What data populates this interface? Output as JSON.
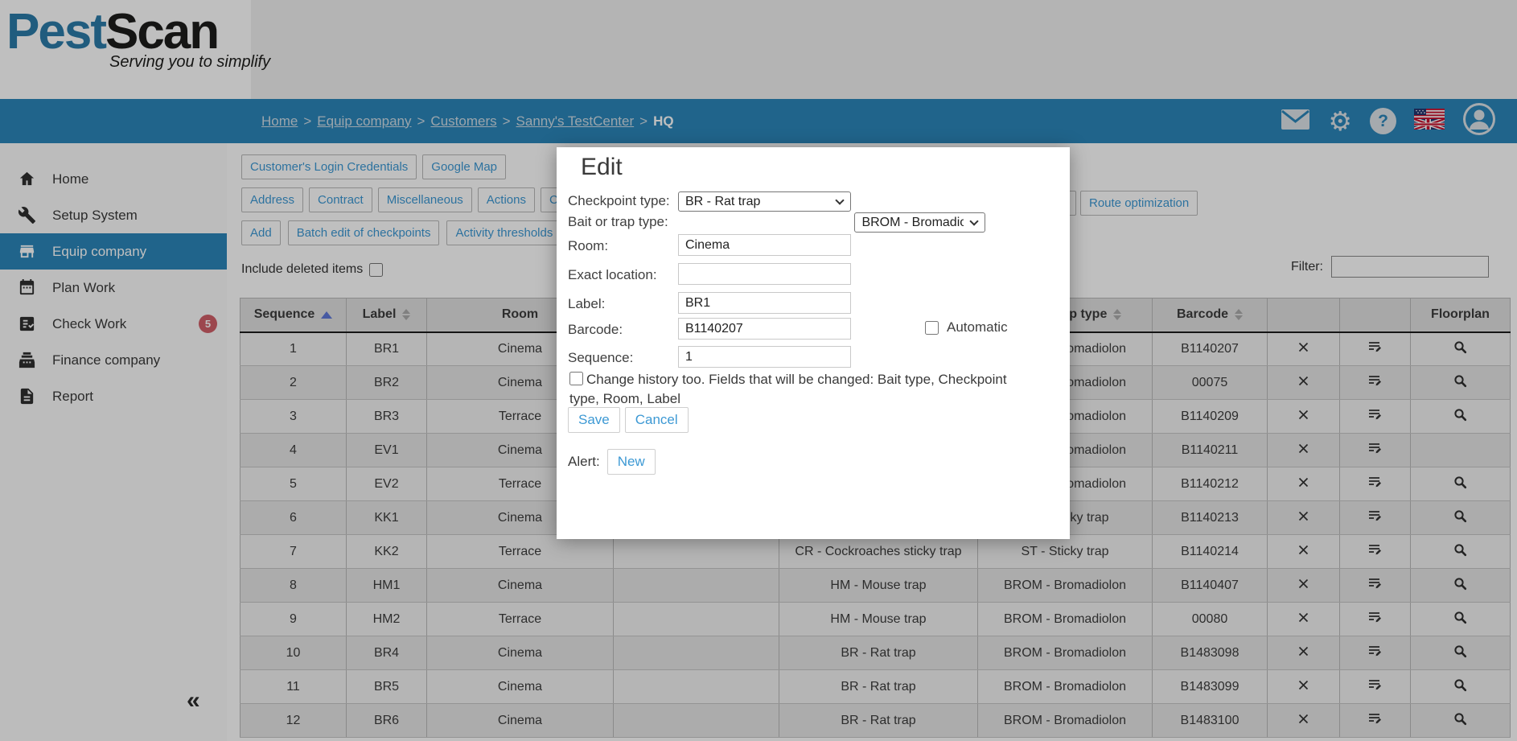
{
  "brand": {
    "name_primary": "Pest",
    "name_secondary": "Scan",
    "tagline": "Serving you to simplify"
  },
  "breadcrumb": {
    "items": [
      "Home",
      "Equip company",
      "Customers",
      "Sanny's TestCenter"
    ],
    "current": "HQ",
    "separator": ">"
  },
  "header_icons": [
    "mail-icon",
    "gear-icon",
    "help-icon",
    "language-flag-icon",
    "account-icon"
  ],
  "sidebar": {
    "items": [
      {
        "label": "Home",
        "icon": "home-icon"
      },
      {
        "label": "Setup System",
        "icon": "wrench-icon"
      },
      {
        "label": "Equip company",
        "icon": "store-icon",
        "active": true
      },
      {
        "label": "Plan Work",
        "icon": "calendar-icon"
      },
      {
        "label": "Check Work",
        "icon": "checklist-icon",
        "badge": "5"
      },
      {
        "label": "Finance company",
        "icon": "cash-register-icon"
      },
      {
        "label": "Report",
        "icon": "report-icon"
      }
    ],
    "collapse_glyph": "«"
  },
  "toolbar": {
    "row1": [
      "Customer's Login Credentials",
      "Google Map"
    ],
    "row2": [
      "Address",
      "Contract",
      "Miscellaneous",
      "Actions",
      "Contact persons"
    ],
    "row2_clipped_fragment": "g",
    "row2_right": "Route optimization",
    "row3": [
      "Add",
      "Batch edit of checkpoints",
      "Activity thresholds"
    ],
    "include_deleted_label": "Include deleted items",
    "filter_label": "Filter:"
  },
  "table": {
    "columns": [
      {
        "label": "Sequence",
        "sort": "asc"
      },
      {
        "label": "Label",
        "sort": "both"
      },
      {
        "label": "Room",
        "sort": null
      },
      {
        "label": "",
        "sort": null
      },
      {
        "label": "",
        "sort": null
      },
      {
        "label": "Bait or trap type",
        "sort": "both"
      },
      {
        "label": "Barcode",
        "sort": "both"
      },
      {
        "label": "",
        "sort": null
      },
      {
        "label": "",
        "sort": null
      },
      {
        "label": "Floorplan",
        "sort": null
      }
    ],
    "rows": [
      {
        "sequence": "1",
        "label": "BR1",
        "room": "Cinema",
        "exact_location": "",
        "checkpoint_type": "",
        "bait_type": "BROM - Bromadiolon",
        "barcode": "B1140207",
        "floorplan": true
      },
      {
        "sequence": "2",
        "label": "BR2",
        "room": "Cinema",
        "exact_location": "",
        "checkpoint_type": "",
        "bait_type": "BROM - Bromadiolon",
        "barcode": "00075",
        "floorplan": true
      },
      {
        "sequence": "3",
        "label": "BR3",
        "room": "Terrace",
        "exact_location": "",
        "checkpoint_type": "",
        "bait_type": "BROM - Bromadiolon",
        "barcode": "B1140209",
        "floorplan": true
      },
      {
        "sequence": "4",
        "label": "EV1",
        "room": "Cinema",
        "exact_location": "",
        "checkpoint_type": "",
        "bait_type": "BROM - Bromadiolon",
        "barcode": "B1140211",
        "floorplan": false
      },
      {
        "sequence": "5",
        "label": "EV2",
        "room": "Terrace",
        "exact_location": "",
        "checkpoint_type": "",
        "bait_type": "BROM - Bromadiolon",
        "barcode": "B1140212",
        "floorplan": true
      },
      {
        "sequence": "6",
        "label": "KK1",
        "room": "Cinema",
        "exact_location": "",
        "checkpoint_type": "",
        "bait_type": "ST - Sticky trap",
        "barcode": "B1140213",
        "floorplan": true
      },
      {
        "sequence": "7",
        "label": "KK2",
        "room": "Terrace",
        "exact_location": "",
        "checkpoint_type": "CR - Cockroaches sticky trap",
        "bait_type": "ST - Sticky trap",
        "barcode": "B1140214",
        "floorplan": true
      },
      {
        "sequence": "8",
        "label": "HM1",
        "room": "Cinema",
        "exact_location": "",
        "checkpoint_type": "HM - Mouse trap",
        "bait_type": "BROM - Bromadiolon",
        "barcode": "B1140407",
        "floorplan": true
      },
      {
        "sequence": "9",
        "label": "HM2",
        "room": "Terrace",
        "exact_location": "",
        "checkpoint_type": "HM - Mouse trap",
        "bait_type": "BROM - Bromadiolon",
        "barcode": "00080",
        "floorplan": true
      },
      {
        "sequence": "10",
        "label": "BR4",
        "room": "Cinema",
        "exact_location": "",
        "checkpoint_type": "BR - Rat trap",
        "bait_type": "BROM - Bromadiolon",
        "barcode": "B1483098",
        "floorplan": true
      },
      {
        "sequence": "11",
        "label": "BR5",
        "room": "Cinema",
        "exact_location": "",
        "checkpoint_type": "BR - Rat trap",
        "bait_type": "BROM - Bromadiolon",
        "barcode": "B1483099",
        "floorplan": true
      },
      {
        "sequence": "12",
        "label": "BR6",
        "room": "Cinema",
        "exact_location": "",
        "checkpoint_type": "BR - Rat trap",
        "bait_type": "BROM - Bromadiolon",
        "barcode": "B1483100",
        "floorplan": true
      }
    ]
  },
  "modal": {
    "title": "Edit",
    "checkpoint_type": {
      "label": "Checkpoint type:",
      "value": "BR - Rat trap"
    },
    "bait_type": {
      "label": "Bait or trap type:",
      "value": "BROM - Bromadiolon"
    },
    "room": {
      "label": "Room:",
      "value": "Cinema"
    },
    "exact_location": {
      "label": "Exact location:",
      "value": ""
    },
    "label_field": {
      "label": "Label:",
      "value": "BR1"
    },
    "barcode": {
      "label": "Barcode:",
      "value": "B1140207",
      "automatic_label": "Automatic"
    },
    "sequence": {
      "label": "Sequence:",
      "value": "1"
    },
    "history_note": "Change history too. Fields that will be changed: Bait type, Checkpoint type, Room, Label",
    "save_label": "Save",
    "cancel_label": "Cancel",
    "alert_label": "Alert:",
    "alert_new_label": "New"
  },
  "colors": {
    "navbar_blue": "#2b86ba",
    "link_blue": "#3d99d4",
    "badge_red": "#d05f68",
    "sort_arrow_blue": "#5f79d9"
  }
}
